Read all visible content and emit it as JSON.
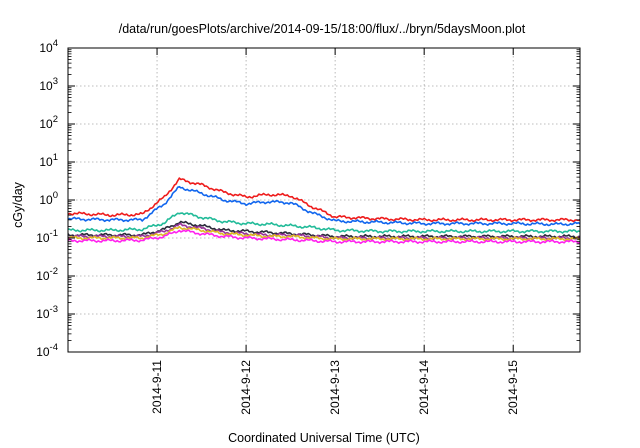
{
  "chart_data": {
    "type": "line",
    "title": "/data/run/goesPlots/archive/2014-09-15/18:00/flux/../bryn/5daysMoon.plot",
    "xlabel": "Coordinated Universal Time (UTC)",
    "ylabel": "cGy/day",
    "y_scale": "log",
    "ylim": [
      0.0001,
      10000
    ],
    "y_ticks": [
      {
        "base": "10",
        "exp": "-4",
        "value": 0.0001
      },
      {
        "base": "10",
        "exp": "-3",
        "value": 0.001
      },
      {
        "base": "10",
        "exp": "-2",
        "value": 0.01
      },
      {
        "base": "10",
        "exp": "-1",
        "value": 0.1
      },
      {
        "base": "10",
        "exp": "0",
        "value": 1
      },
      {
        "base": "10",
        "exp": "1",
        "value": 10
      },
      {
        "base": "10",
        "exp": "2",
        "value": 100
      },
      {
        "base": "10",
        "exp": "3",
        "value": 1000
      },
      {
        "base": "10",
        "exp": "4",
        "value": 10000
      }
    ],
    "xlim": [
      "2014-09-10 00:00",
      "2014-09-15 18:00"
    ],
    "x_ticks": [
      "2014-9-11",
      "2014-9-12",
      "2014-9-13",
      "2014-9-14",
      "2014-9-15"
    ],
    "grid": true,
    "x": [
      "2014-09-10 00:00",
      "2014-09-10 12:00",
      "2014-09-10 20:00",
      "2014-09-11 02:00",
      "2014-09-11 06:00",
      "2014-09-11 12:00",
      "2014-09-11 18:00",
      "2014-09-12 00:00",
      "2014-09-12 06:00",
      "2014-09-12 12:00",
      "2014-09-12 18:00",
      "2014-09-13 00:00",
      "2014-09-13 12:00",
      "2014-09-14 00:00",
      "2014-09-14 12:00",
      "2014-09-15 00:00",
      "2014-09-15 12:00",
      "2014-09-15 18:00"
    ],
    "series": [
      {
        "color": "#ee1c1c",
        "values": [
          0.45,
          0.4,
          0.42,
          1.2,
          3.5,
          2.5,
          1.6,
          1.2,
          1.4,
          1.3,
          0.65,
          0.36,
          0.32,
          0.3,
          0.3,
          0.3,
          0.3,
          0.3
        ]
      },
      {
        "color": "#1166ee",
        "values": [
          0.32,
          0.3,
          0.3,
          0.8,
          2.2,
          1.5,
          1.0,
          0.8,
          0.9,
          0.85,
          0.45,
          0.28,
          0.26,
          0.24,
          0.24,
          0.24,
          0.23,
          0.24
        ]
      },
      {
        "color": "#22bb99",
        "values": [
          0.16,
          0.16,
          0.17,
          0.25,
          0.48,
          0.35,
          0.27,
          0.24,
          0.23,
          0.21,
          0.19,
          0.16,
          0.15,
          0.15,
          0.15,
          0.15,
          0.15,
          0.15
        ]
      },
      {
        "color": "#2a2a3a",
        "values": [
          0.12,
          0.12,
          0.12,
          0.17,
          0.26,
          0.21,
          0.16,
          0.15,
          0.14,
          0.13,
          0.12,
          0.11,
          0.11,
          0.11,
          0.11,
          0.11,
          0.11,
          0.11
        ]
      },
      {
        "color": "#993399",
        "values": [
          0.11,
          0.11,
          0.11,
          0.15,
          0.22,
          0.18,
          0.14,
          0.13,
          0.12,
          0.12,
          0.11,
          0.1,
          0.1,
          0.1,
          0.1,
          0.1,
          0.1,
          0.1
        ]
      },
      {
        "color": "#ddbb22",
        "values": [
          0.1,
          0.1,
          0.1,
          0.13,
          0.19,
          0.16,
          0.13,
          0.12,
          0.11,
          0.11,
          0.1,
          0.095,
          0.095,
          0.095,
          0.095,
          0.095,
          0.095,
          0.095
        ]
      },
      {
        "color": "#ff22ee",
        "values": [
          0.085,
          0.085,
          0.088,
          0.11,
          0.16,
          0.13,
          0.11,
          0.1,
          0.095,
          0.09,
          0.085,
          0.08,
          0.08,
          0.08,
          0.08,
          0.08,
          0.08,
          0.08
        ]
      }
    ]
  }
}
